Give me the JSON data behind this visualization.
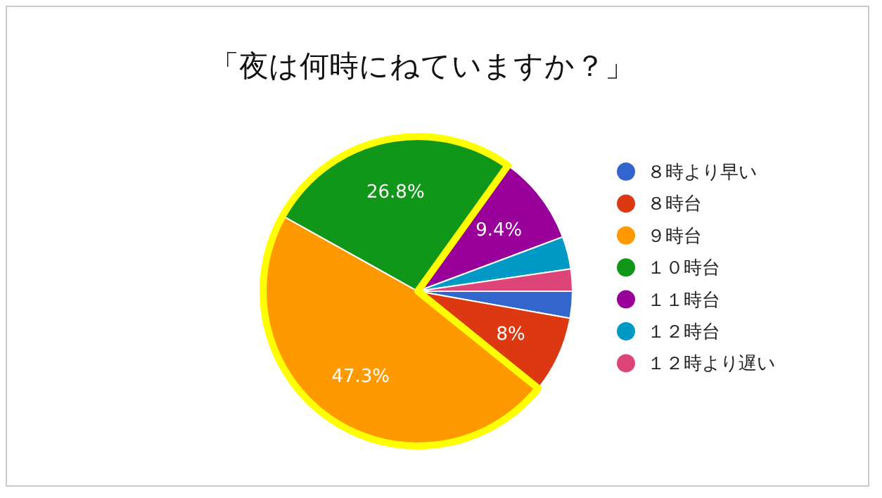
{
  "chart_data": {
    "type": "pie",
    "title": "「夜は何時にねていますか？」",
    "categories": [
      "８時より早い",
      "８時台",
      "９時台",
      "１０時台",
      "１１時台",
      "１２時台",
      "１２時より遅い"
    ],
    "values": [
      2.8,
      8,
      47.3,
      26.8,
      9.4,
      3.4,
      2.3
    ],
    "colors": [
      "#3366cc",
      "#dc3912",
      "#ff9900",
      "#109618",
      "#990099",
      "#0099c6",
      "#dd4477"
    ],
    "value_labels": [
      null,
      "8%",
      "47.3%",
      "26.8%",
      "9.4%",
      null,
      null
    ],
    "legend": "right"
  }
}
